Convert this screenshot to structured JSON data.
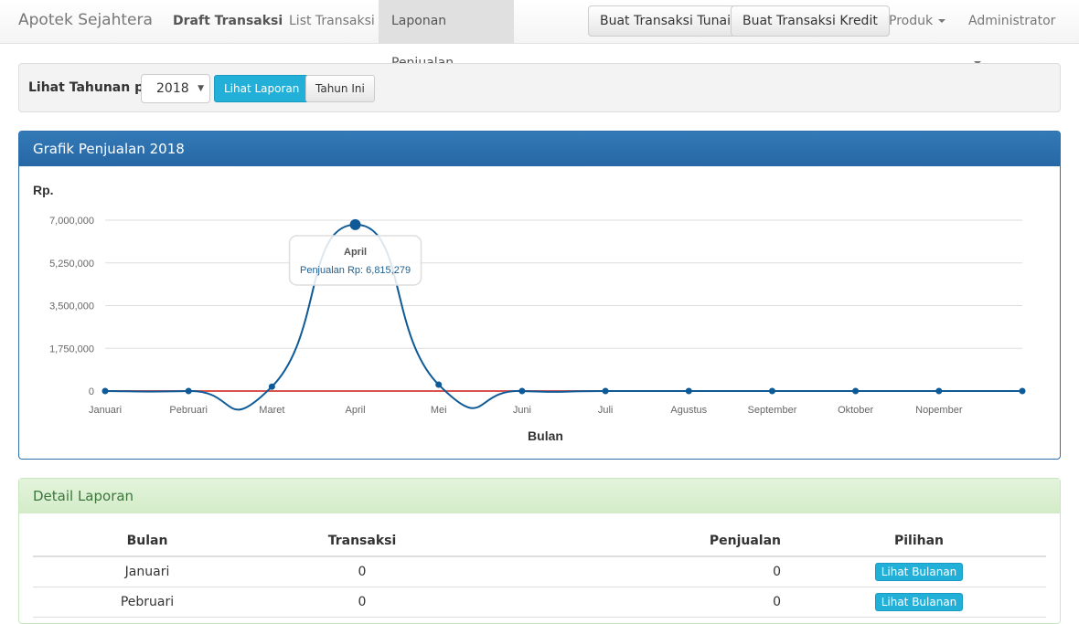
{
  "navbar": {
    "brand": "Apotek Sejahtera",
    "links": [
      "Draft Transaksi",
      "List Transaksi",
      "Laponan Penjualan"
    ],
    "buttons": [
      "Buat Transaksi Tunai",
      "Buat Transaksi Kredit"
    ],
    "dropdowns": [
      "Produk",
      "Administrator"
    ]
  },
  "filter": {
    "label": "Lihat Tahunan per",
    "year": "2018",
    "view_button": "Lihat Laporan",
    "this_year_button": "Tahun Ini"
  },
  "chart_panel": {
    "title": "Grafik Penjualan 2018"
  },
  "chart_data": {
    "type": "line",
    "ylabel": "Rp.",
    "xlabel": "Bulan",
    "categories": [
      "Januari",
      "Pebruari",
      "Maret",
      "April",
      "Mei",
      "Juni",
      "Juli",
      "Agustus",
      "September",
      "Oktober",
      "Nopember",
      ""
    ],
    "yticks": [
      "0",
      "1,750,000",
      "3,500,000",
      "5,250,000",
      "7,000,000"
    ],
    "ylim": [
      0,
      7000000
    ],
    "series": [
      {
        "values": [
          0,
          0,
          180000,
          6815279,
          260000,
          0,
          0,
          0,
          0,
          0,
          0,
          0
        ],
        "color": "#0e5a96"
      }
    ],
    "zero_line_color": "#d9534f",
    "grid": true,
    "tooltip": {
      "title": "April",
      "text": "Penjualan Rp: 6,815,279"
    }
  },
  "detail_panel": {
    "title": "Detail Laporan",
    "columns": [
      "Bulan",
      "Transaksi",
      "Penjualan",
      "Pilihan"
    ],
    "rows": [
      {
        "bulan": "Januari",
        "transaksi": "0",
        "penjualan": "0",
        "action": "Lihat Bulanan"
      },
      {
        "bulan": "Pebruari",
        "transaksi": "0",
        "penjualan": "0",
        "action": "Lihat Bulanan"
      }
    ]
  }
}
